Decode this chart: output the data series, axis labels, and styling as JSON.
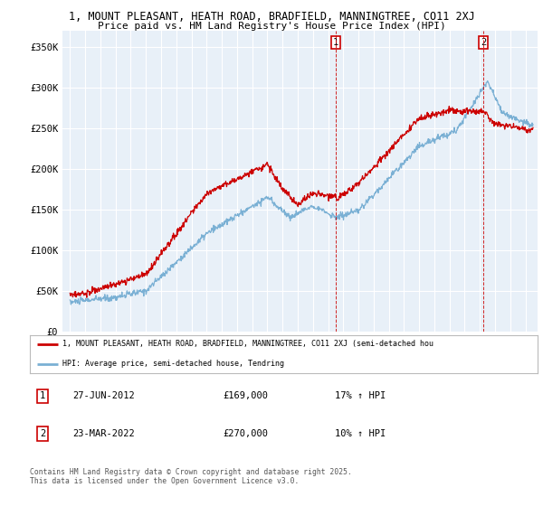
{
  "title_line1": "1, MOUNT PLEASANT, HEATH ROAD, BRADFIELD, MANNINGTREE, CO11 2XJ",
  "title_line2": "Price paid vs. HM Land Registry's House Price Index (HPI)",
  "background_color": "#ffffff",
  "plot_bg_color": "#e8f0f8",
  "grid_color": "#ffffff",
  "line1_color": "#cc0000",
  "line2_color": "#7ab0d4",
  "marker1_x": 2012.49,
  "marker2_x": 2022.22,
  "marker_line_color": "#cc0000",
  "yticks": [
    0,
    50000,
    100000,
    150000,
    200000,
    250000,
    300000,
    350000
  ],
  "ytick_labels": [
    "£0",
    "£50K",
    "£100K",
    "£150K",
    "£200K",
    "£250K",
    "£300K",
    "£350K"
  ],
  "xlim": [
    1994.5,
    2025.8
  ],
  "ylim": [
    0,
    370000
  ],
  "legend_line1": "1, MOUNT PLEASANT, HEATH ROAD, BRADFIELD, MANNINGTREE, CO11 2XJ (semi-detached hou",
  "legend_line2": "HPI: Average price, semi-detached house, Tendring",
  "annotation1": [
    "1",
    "27-JUN-2012",
    "£169,000",
    "17% ↑ HPI"
  ],
  "annotation2": [
    "2",
    "23-MAR-2022",
    "£270,000",
    "10% ↑ HPI"
  ],
  "footer": "Contains HM Land Registry data © Crown copyright and database right 2025.\nThis data is licensed under the Open Government Licence v3.0."
}
